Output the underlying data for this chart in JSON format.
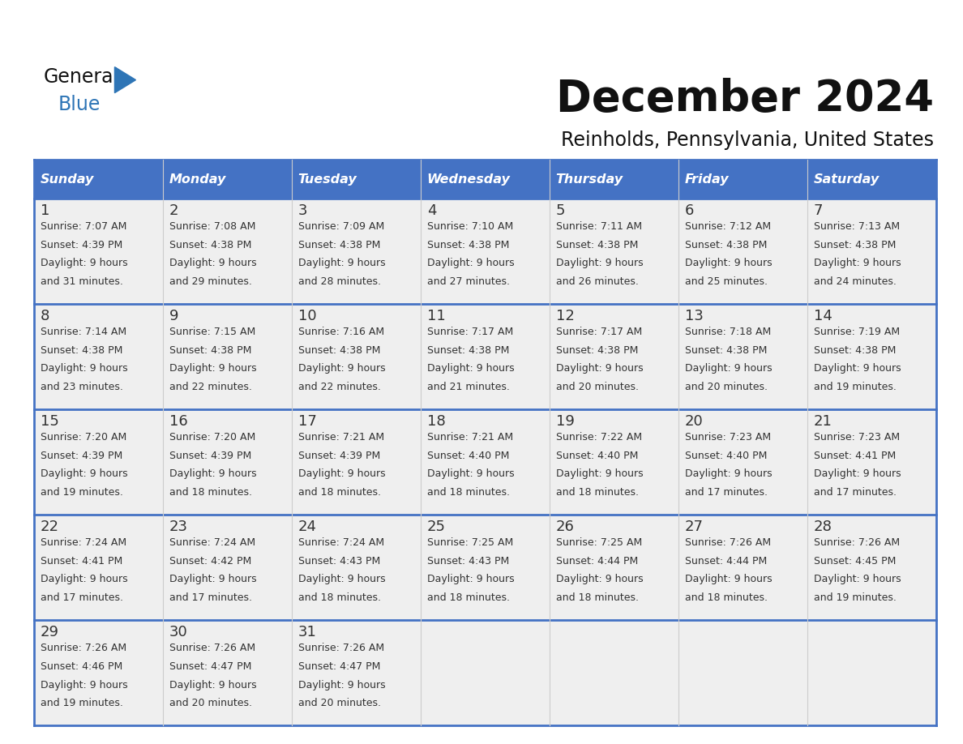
{
  "title": "December 2024",
  "subtitle": "Reinholds, Pennsylvania, United States",
  "header_bg_color": "#4472C4",
  "header_text_color": "#FFFFFF",
  "days_of_week": [
    "Sunday",
    "Monday",
    "Tuesday",
    "Wednesday",
    "Thursday",
    "Friday",
    "Saturday"
  ],
  "row_bg_color": "#EFEFEF",
  "border_color": "#4472C4",
  "text_color": "#333333",
  "day_num_color": "#333333",
  "calendar_data": [
    [
      {
        "day": 1,
        "sunrise": "7:07 AM",
        "sunset": "4:39 PM",
        "daylight_h": "9 hours",
        "daylight_m": "31 minutes."
      },
      {
        "day": 2,
        "sunrise": "7:08 AM",
        "sunset": "4:38 PM",
        "daylight_h": "9 hours",
        "daylight_m": "29 minutes."
      },
      {
        "day": 3,
        "sunrise": "7:09 AM",
        "sunset": "4:38 PM",
        "daylight_h": "9 hours",
        "daylight_m": "28 minutes."
      },
      {
        "day": 4,
        "sunrise": "7:10 AM",
        "sunset": "4:38 PM",
        "daylight_h": "9 hours",
        "daylight_m": "27 minutes."
      },
      {
        "day": 5,
        "sunrise": "7:11 AM",
        "sunset": "4:38 PM",
        "daylight_h": "9 hours",
        "daylight_m": "26 minutes."
      },
      {
        "day": 6,
        "sunrise": "7:12 AM",
        "sunset": "4:38 PM",
        "daylight_h": "9 hours",
        "daylight_m": "25 minutes."
      },
      {
        "day": 7,
        "sunrise": "7:13 AM",
        "sunset": "4:38 PM",
        "daylight_h": "9 hours",
        "daylight_m": "24 minutes."
      }
    ],
    [
      {
        "day": 8,
        "sunrise": "7:14 AM",
        "sunset": "4:38 PM",
        "daylight_h": "9 hours",
        "daylight_m": "23 minutes."
      },
      {
        "day": 9,
        "sunrise": "7:15 AM",
        "sunset": "4:38 PM",
        "daylight_h": "9 hours",
        "daylight_m": "22 minutes."
      },
      {
        "day": 10,
        "sunrise": "7:16 AM",
        "sunset": "4:38 PM",
        "daylight_h": "9 hours",
        "daylight_m": "22 minutes."
      },
      {
        "day": 11,
        "sunrise": "7:17 AM",
        "sunset": "4:38 PM",
        "daylight_h": "9 hours",
        "daylight_m": "21 minutes."
      },
      {
        "day": 12,
        "sunrise": "7:17 AM",
        "sunset": "4:38 PM",
        "daylight_h": "9 hours",
        "daylight_m": "20 minutes."
      },
      {
        "day": 13,
        "sunrise": "7:18 AM",
        "sunset": "4:38 PM",
        "daylight_h": "9 hours",
        "daylight_m": "20 minutes."
      },
      {
        "day": 14,
        "sunrise": "7:19 AM",
        "sunset": "4:38 PM",
        "daylight_h": "9 hours",
        "daylight_m": "19 minutes."
      }
    ],
    [
      {
        "day": 15,
        "sunrise": "7:20 AM",
        "sunset": "4:39 PM",
        "daylight_h": "9 hours",
        "daylight_m": "19 minutes."
      },
      {
        "day": 16,
        "sunrise": "7:20 AM",
        "sunset": "4:39 PM",
        "daylight_h": "9 hours",
        "daylight_m": "18 minutes."
      },
      {
        "day": 17,
        "sunrise": "7:21 AM",
        "sunset": "4:39 PM",
        "daylight_h": "9 hours",
        "daylight_m": "18 minutes."
      },
      {
        "day": 18,
        "sunrise": "7:21 AM",
        "sunset": "4:40 PM",
        "daylight_h": "9 hours",
        "daylight_m": "18 minutes."
      },
      {
        "day": 19,
        "sunrise": "7:22 AM",
        "sunset": "4:40 PM",
        "daylight_h": "9 hours",
        "daylight_m": "18 minutes."
      },
      {
        "day": 20,
        "sunrise": "7:23 AM",
        "sunset": "4:40 PM",
        "daylight_h": "9 hours",
        "daylight_m": "17 minutes."
      },
      {
        "day": 21,
        "sunrise": "7:23 AM",
        "sunset": "4:41 PM",
        "daylight_h": "9 hours",
        "daylight_m": "17 minutes."
      }
    ],
    [
      {
        "day": 22,
        "sunrise": "7:24 AM",
        "sunset": "4:41 PM",
        "daylight_h": "9 hours",
        "daylight_m": "17 minutes."
      },
      {
        "day": 23,
        "sunrise": "7:24 AM",
        "sunset": "4:42 PM",
        "daylight_h": "9 hours",
        "daylight_m": "17 minutes."
      },
      {
        "day": 24,
        "sunrise": "7:24 AM",
        "sunset": "4:43 PM",
        "daylight_h": "9 hours",
        "daylight_m": "18 minutes."
      },
      {
        "day": 25,
        "sunrise": "7:25 AM",
        "sunset": "4:43 PM",
        "daylight_h": "9 hours",
        "daylight_m": "18 minutes."
      },
      {
        "day": 26,
        "sunrise": "7:25 AM",
        "sunset": "4:44 PM",
        "daylight_h": "9 hours",
        "daylight_m": "18 minutes."
      },
      {
        "day": 27,
        "sunrise": "7:26 AM",
        "sunset": "4:44 PM",
        "daylight_h": "9 hours",
        "daylight_m": "18 minutes."
      },
      {
        "day": 28,
        "sunrise": "7:26 AM",
        "sunset": "4:45 PM",
        "daylight_h": "9 hours",
        "daylight_m": "19 minutes."
      }
    ],
    [
      {
        "day": 29,
        "sunrise": "7:26 AM",
        "sunset": "4:46 PM",
        "daylight_h": "9 hours",
        "daylight_m": "19 minutes."
      },
      {
        "day": 30,
        "sunrise": "7:26 AM",
        "sunset": "4:47 PM",
        "daylight_h": "9 hours",
        "daylight_m": "20 minutes."
      },
      {
        "day": 31,
        "sunrise": "7:26 AM",
        "sunset": "4:47 PM",
        "daylight_h": "9 hours",
        "daylight_m": "20 minutes."
      },
      null,
      null,
      null,
      null
    ]
  ],
  "logo_triangle_color": "#2E75B6"
}
